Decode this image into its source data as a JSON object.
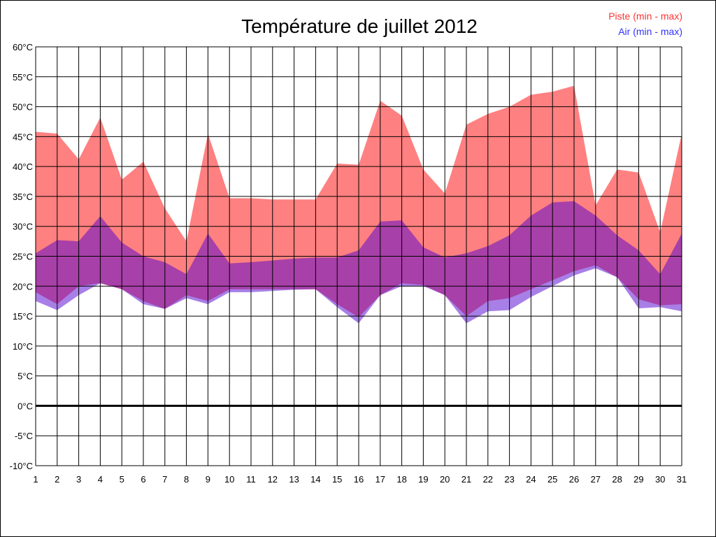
{
  "chart_data": {
    "type": "area",
    "title": "Température de juillet 2012",
    "x": [
      1,
      2,
      3,
      4,
      5,
      6,
      7,
      8,
      9,
      10,
      11,
      12,
      13,
      14,
      15,
      16,
      17,
      18,
      19,
      20,
      21,
      22,
      23,
      24,
      25,
      26,
      27,
      28,
      29,
      30,
      31
    ],
    "x_tick_labels": [
      "1",
      "2",
      "3",
      "4",
      "5",
      "6",
      "7",
      "8",
      "9",
      "10",
      "11",
      "12",
      "13",
      "14",
      "15",
      "16",
      "17",
      "18",
      "19",
      "20",
      "21",
      "22",
      "23",
      "24",
      "25",
      "26",
      "27",
      "28",
      "29",
      "30",
      "31"
    ],
    "y_tick_labels": [
      "60°C",
      "55°C",
      "50°C",
      "45°C",
      "40°C",
      "35°C",
      "30°C",
      "25°C",
      "20°C",
      "15°C",
      "10°C",
      "5°C",
      "0°C",
      "-5°C",
      "-10°C"
    ],
    "y_ticks": [
      60,
      55,
      50,
      45,
      40,
      35,
      30,
      25,
      20,
      15,
      10,
      5,
      0,
      -5,
      -10
    ],
    "ylim": [
      -10,
      60
    ],
    "xlim": [
      1,
      31
    ],
    "grid": true,
    "legend_position": "top-right",
    "series": [
      {
        "name": "Piste (min - max)",
        "color": "#ff8080",
        "legend_color": "#ff3333",
        "min": [
          19.0,
          17.0,
          20.0,
          20.5,
          19.5,
          17.5,
          16.2,
          18.5,
          17.5,
          19.5,
          19.5,
          19.5,
          19.5,
          19.5,
          17.0,
          14.8,
          18.5,
          20.5,
          20.2,
          18.5,
          15.0,
          17.5,
          18.0,
          19.5,
          21.0,
          22.5,
          23.5,
          21.5,
          17.8,
          16.8,
          17.0
        ],
        "max": [
          45.8,
          45.5,
          41.2,
          48.2,
          37.8,
          40.8,
          33.0,
          27.5,
          45.5,
          34.7,
          34.7,
          34.5,
          34.5,
          34.5,
          40.5,
          40.3,
          51.0,
          48.5,
          39.5,
          35.5,
          47.0,
          48.8,
          50.0,
          52.0,
          52.5,
          53.5,
          33.5,
          39.5,
          39.0,
          29.0,
          45.5
        ]
      },
      {
        "name": "Air (min - max)",
        "color": "#8080ff",
        "legend_color": "#3333ff",
        "min": [
          17.5,
          16.0,
          18.5,
          20.5,
          19.5,
          17.0,
          16.2,
          18.0,
          17.0,
          19.0,
          19.0,
          19.2,
          19.4,
          19.5,
          16.5,
          13.8,
          18.5,
          20.0,
          20.0,
          18.5,
          13.8,
          15.8,
          16.0,
          18.2,
          20.0,
          21.8,
          23.0,
          21.5,
          16.3,
          16.5,
          15.8
        ],
        "max": [
          25.5,
          27.7,
          27.5,
          31.7,
          27.3,
          25.0,
          24.0,
          22.0,
          28.8,
          23.8,
          24.0,
          24.3,
          24.6,
          24.8,
          24.8,
          26.0,
          30.8,
          31.0,
          26.5,
          24.8,
          25.5,
          26.7,
          28.5,
          31.8,
          34.0,
          34.2,
          31.8,
          28.5,
          26.0,
          22.0,
          28.8
        ]
      }
    ],
    "zero_line": 0
  }
}
